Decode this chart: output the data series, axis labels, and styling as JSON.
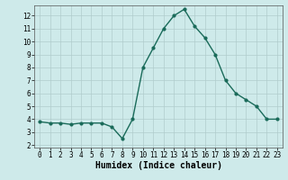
{
  "x": [
    0,
    1,
    2,
    3,
    4,
    5,
    6,
    7,
    8,
    9,
    10,
    11,
    12,
    13,
    14,
    15,
    16,
    17,
    18,
    19,
    20,
    21,
    22,
    23
  ],
  "y": [
    3.8,
    3.7,
    3.7,
    3.6,
    3.7,
    3.7,
    3.7,
    3.4,
    2.5,
    4.0,
    8.0,
    9.5,
    11.0,
    12.0,
    12.5,
    11.2,
    10.3,
    9.0,
    7.0,
    6.0,
    5.5,
    5.0,
    4.0,
    4.0
  ],
  "line_color": "#1a6b5a",
  "marker": "o",
  "marker_size": 2.0,
  "linewidth": 1.0,
  "bg_color": "#ceeaea",
  "grid_color": "#b0cccc",
  "xlabel": "Humidex (Indice chaleur)",
  "xlabel_fontsize": 7,
  "xlabel_bold": true,
  "ylim": [
    1.8,
    12.8
  ],
  "xlim": [
    -0.5,
    23.5
  ],
  "yticks": [
    2,
    3,
    4,
    5,
    6,
    7,
    8,
    9,
    10,
    11,
    12
  ],
  "xticks": [
    0,
    1,
    2,
    3,
    4,
    5,
    6,
    7,
    8,
    9,
    10,
    11,
    12,
    13,
    14,
    15,
    16,
    17,
    18,
    19,
    20,
    21,
    22,
    23
  ],
  "tick_fontsize": 5.5,
  "spine_color": "#555555"
}
